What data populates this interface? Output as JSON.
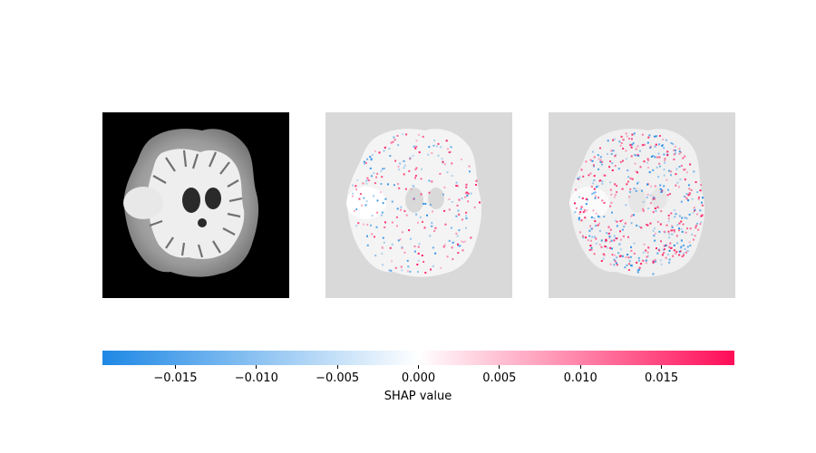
{
  "chart_data": {
    "type": "heatmap",
    "panels": [
      {
        "name": "",
        "kind": "input-image"
      },
      {
        "name": "",
        "kind": "shap-overlay"
      },
      {
        "name": "",
        "kind": "shap-overlay"
      }
    ],
    "colorbar": {
      "label": "SHAP value",
      "vmin": -0.0195,
      "vmax": 0.0195,
      "ticks": [
        -0.015,
        -0.01,
        -0.005,
        0.0,
        0.005,
        0.01,
        0.015
      ],
      "tick_labels": [
        "−0.015",
        "−0.010",
        "−0.005",
        "0.000",
        "0.005",
        "0.010",
        "0.015"
      ],
      "colors": {
        "negative": "#1e88e5",
        "zero": "#ffffff",
        "positive": "#ff0d57"
      }
    }
  }
}
